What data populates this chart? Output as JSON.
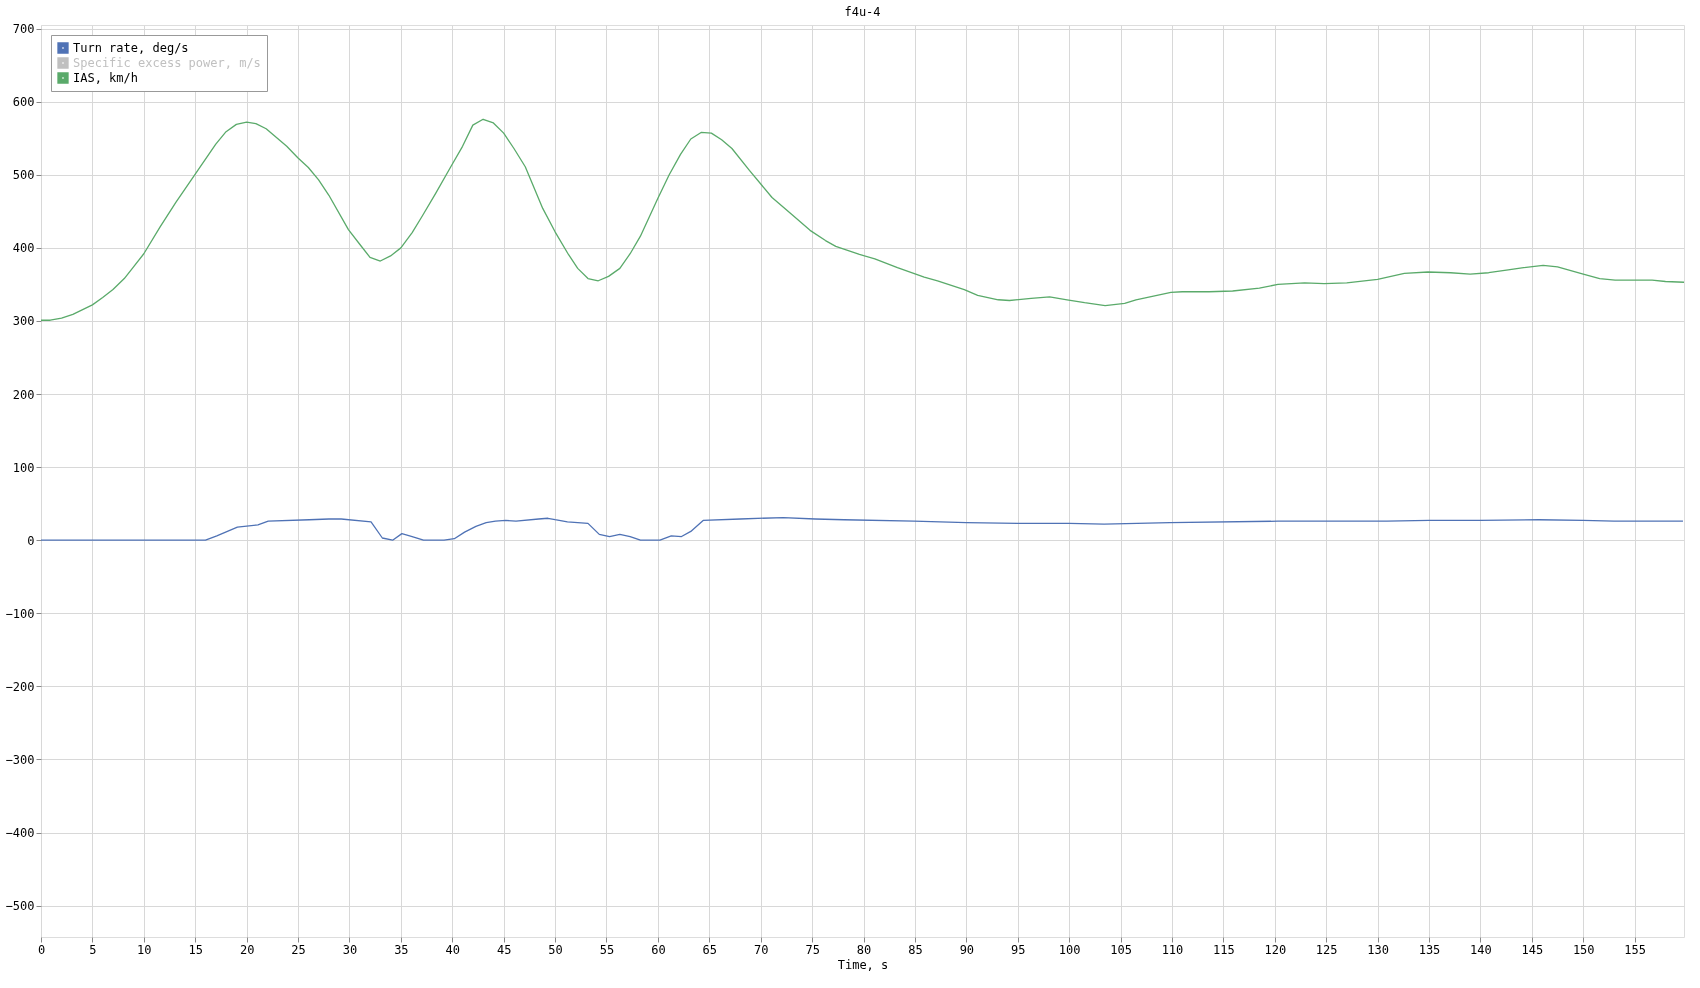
{
  "chart_data": {
    "type": "line",
    "title": "f4u-4",
    "xlabel": "Time, s",
    "xlim": [
      0,
      159.8
    ],
    "ylim": [
      -543,
      705
    ],
    "xticks": [
      0,
      5,
      10,
      15,
      20,
      25,
      30,
      35,
      40,
      45,
      50,
      55,
      60,
      65,
      70,
      75,
      80,
      85,
      90,
      95,
      100,
      105,
      110,
      115,
      120,
      125,
      130,
      135,
      140,
      145,
      150,
      155
    ],
    "yticks": [
      -500,
      -400,
      -300,
      -200,
      -100,
      0,
      100,
      200,
      300,
      400,
      500,
      600,
      700
    ],
    "grid": true,
    "legend": "top left",
    "marker": "none",
    "line_style": "solid",
    "series": [
      {
        "name": "Turn rate, deg/s",
        "color": "#4f72b5",
        "x": [
          0,
          16,
          17.1,
          19.1,
          21.1,
          22.1,
          26.1,
          28,
          29.2,
          32.1,
          33.2,
          34.2,
          35.1,
          36.1,
          37.2,
          39.2,
          40.2,
          41.2,
          42.3,
          43.3,
          44.2,
          45.2,
          46.2,
          48.4,
          49.3,
          50,
          51.2,
          53.2,
          54.3,
          55.3,
          56.3,
          57.3,
          58.3,
          60.2,
          61.3,
          62.3,
          63.2,
          64.4,
          68,
          72.2,
          75.3,
          78.1,
          84.9,
          90,
          95,
          100,
          103.4,
          109.8,
          120.3,
          125.6,
          130.9,
          135,
          139.9,
          145.7,
          150,
          153,
          159.7
        ],
        "values": [
          0,
          0,
          6,
          18,
          21,
          26,
          28,
          29,
          29,
          25,
          3,
          0,
          9,
          5,
          0,
          0,
          2,
          11,
          19,
          24,
          26,
          27,
          26,
          29,
          30,
          28,
          25,
          23,
          8,
          5,
          8,
          5,
          0,
          0,
          6,
          5,
          12,
          27,
          29,
          31,
          29,
          28,
          26,
          24,
          23,
          23,
          22,
          24,
          26,
          26,
          26,
          27,
          27,
          28,
          27,
          26,
          26
        ]
      },
      {
        "name": "Specific excess power, m/s",
        "color": "#c0c0c0"
      },
      {
        "name": "IAS, km/h",
        "color": "#5aaa6a",
        "x": [
          0,
          0.9,
          2,
          3.1,
          5,
          6,
          7,
          8.1,
          9,
          10,
          11.6,
          13.1,
          15,
          17,
          18,
          19,
          20,
          20.9,
          21.9,
          23.9,
          25,
          26,
          27,
          28,
          29.9,
          31,
          32,
          33,
          34,
          35,
          36.1,
          37.1,
          38.4,
          39.9,
          41,
          42,
          43,
          44,
          45,
          46,
          47.1,
          48.8,
          50,
          51.3,
          52.2,
          53.2,
          54.2,
          55.2,
          56.3,
          57.3,
          58.3,
          60,
          61.1,
          62.2,
          63.2,
          64.2,
          65.2,
          66.2,
          67.2,
          68.9,
          71.1,
          73,
          74.8,
          76.3,
          77.3,
          79.6,
          81.1,
          83.3,
          85.9,
          87.2,
          89.8,
          91.1,
          93.1,
          94.2,
          96.3,
          98.1,
          99.8,
          101.5,
          103.5,
          105.4,
          106.5,
          109.9,
          111,
          113.6,
          115.9,
          118.5,
          120.3,
          122.9,
          124.8,
          127,
          130,
          132.6,
          134.9,
          137.1,
          139,
          140.8,
          142.7,
          144.2,
          146.1,
          147.5,
          150,
          151.6,
          153.1,
          156.7,
          158,
          159.8
        ],
        "values": [
          301,
          301,
          304,
          309,
          322,
          332,
          343,
          358,
          374,
          392,
          429,
          462,
          501,
          542,
          559,
          569,
          572,
          570,
          563,
          539,
          523,
          510,
          493,
          472,
          425,
          405,
          387,
          382,
          389,
          400,
          421,
          444,
          475,
          512,
          539,
          568,
          576,
          571,
          557,
          536,
          511,
          454,
          422,
          391,
          372,
          358,
          355,
          361,
          372,
          392,
          416,
          468,
          500,
          528,
          549,
          558,
          557,
          548,
          536,
          506,
          469,
          446,
          424,
          410,
          402,
          391,
          385,
          373,
          360,
          355,
          343,
          335,
          329,
          328,
          331,
          333,
          329,
          325,
          321,
          324,
          329,
          339,
          340,
          340,
          341,
          345,
          350,
          352,
          351,
          352,
          357,
          365,
          367,
          366,
          364,
          366,
          370,
          373,
          376,
          374,
          364,
          358,
          356,
          356,
          354,
          353
        ]
      }
    ]
  }
}
